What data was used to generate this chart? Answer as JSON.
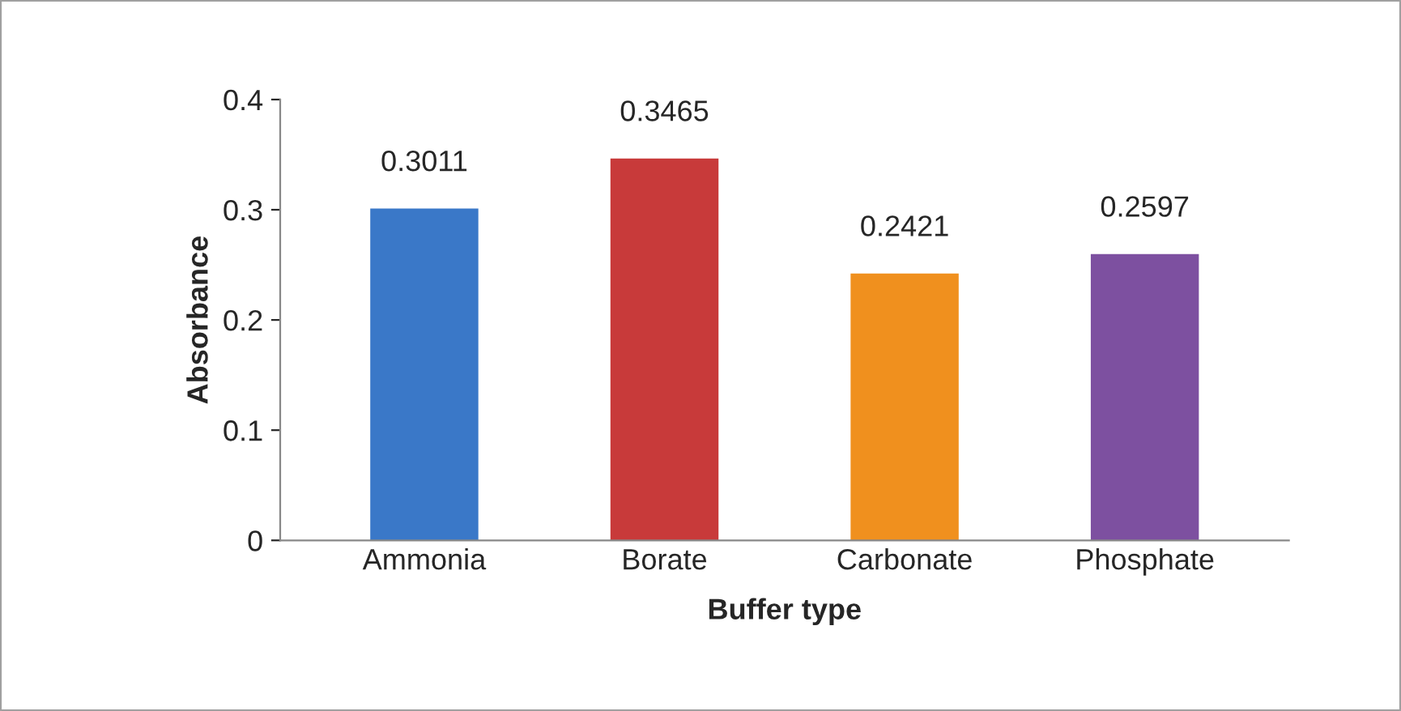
{
  "chart_data": {
    "type": "bar",
    "xlabel": "Buffer type",
    "ylabel": "Absorbance",
    "categories": [
      "Ammonia",
      "Borate",
      "Carbonate",
      "Phosphate"
    ],
    "values": [
      0.3011,
      0.3465,
      0.2421,
      0.2597
    ],
    "colors": [
      "#3a78c8",
      "#c83a3a",
      "#f0901e",
      "#7d50a0"
    ],
    "ylim": [
      0,
      0.4
    ],
    "yticks": [
      0,
      0.1,
      0.2,
      0.3,
      0.4
    ],
    "data_labels": true,
    "grid": false,
    "legend": false
  }
}
